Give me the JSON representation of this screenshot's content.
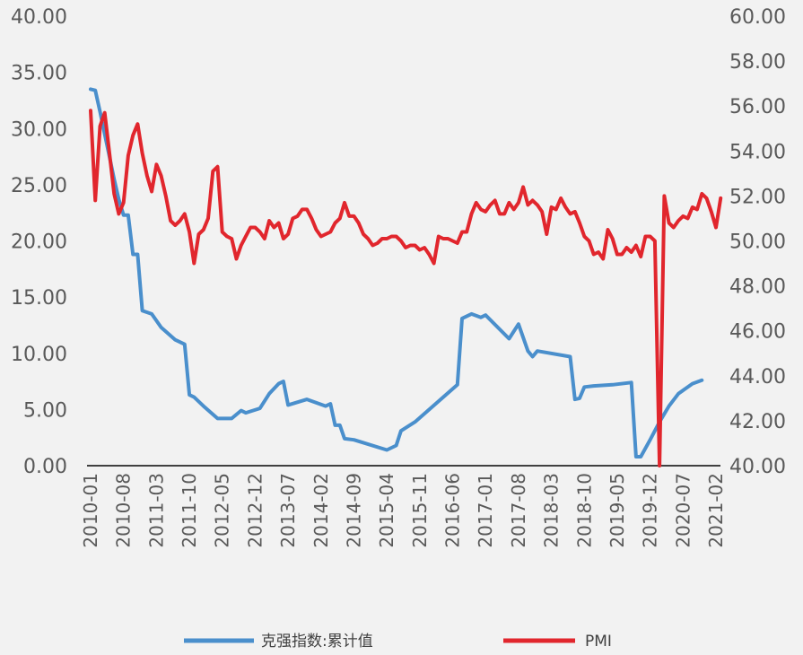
{
  "chart_data": {
    "type": "line",
    "x_tick_labels": [
      "2010-01",
      "2010-08",
      "2011-03",
      "2011-10",
      "2012-05",
      "2012-12",
      "2013-07",
      "2014-02",
      "2014-09",
      "2015-04",
      "2015-11",
      "2016-06",
      "2017-01",
      "2017-08",
      "2018-03",
      "2018-10",
      "2019-05",
      "2019-12",
      "2020-07",
      "2021-02"
    ],
    "y_left": {
      "ylim": [
        0,
        40
      ],
      "tick_labels": [
        "0.00",
        "5.00",
        "10.00",
        "15.00",
        "20.00",
        "25.00",
        "30.00",
        "35.00",
        "40.00"
      ]
    },
    "y_right": {
      "ylim": [
        40,
        60
      ],
      "tick_labels": [
        "40.00",
        "42.00",
        "44.00",
        "46.00",
        "48.00",
        "50.00",
        "52.00",
        "54.00",
        "56.00",
        "58.00",
        "60.00"
      ]
    },
    "series": [
      {
        "name": "克强指数:累计值",
        "axis": "left",
        "color": "#4a8fcc",
        "points": [
          [
            "2010-01",
            33.5
          ],
          [
            "2010-02",
            33.4
          ],
          [
            "2010-03",
            31.5
          ],
          [
            "2010-04",
            29.5
          ],
          [
            "2010-05",
            27.5
          ],
          [
            "2010-06",
            25.5
          ],
          [
            "2010-07",
            23.7
          ],
          [
            "2010-08",
            22.3
          ],
          [
            "2010-09",
            22.3
          ],
          [
            "2010-10",
            18.8
          ],
          [
            "2010-11",
            18.8
          ],
          [
            "2010-12",
            13.8
          ],
          [
            "2011-02",
            13.5
          ],
          [
            "2011-04",
            12.3
          ],
          [
            "2011-07",
            11.2
          ],
          [
            "2011-09",
            10.8
          ],
          [
            "2011-10",
            6.3
          ],
          [
            "2011-11",
            6.1
          ],
          [
            "2012-01",
            5.3
          ],
          [
            "2012-04",
            4.2
          ],
          [
            "2012-07",
            4.2
          ],
          [
            "2012-09",
            4.9
          ],
          [
            "2012-10",
            4.7
          ],
          [
            "2013-01",
            5.1
          ],
          [
            "2013-03",
            6.4
          ],
          [
            "2013-05",
            7.3
          ],
          [
            "2013-06",
            7.5
          ],
          [
            "2013-07",
            5.4
          ],
          [
            "2013-11",
            5.9
          ],
          [
            "2014-03",
            5.3
          ],
          [
            "2014-04",
            5.5
          ],
          [
            "2014-05",
            3.6
          ],
          [
            "2014-06",
            3.6
          ],
          [
            "2014-07",
            2.4
          ],
          [
            "2014-09",
            2.3
          ],
          [
            "2015-04",
            1.4
          ],
          [
            "2015-06",
            1.8
          ],
          [
            "2015-07",
            3.1
          ],
          [
            "2015-10",
            3.9
          ],
          [
            "2016-07",
            7.2
          ],
          [
            "2016-08",
            13.1
          ],
          [
            "2016-10",
            13.5
          ],
          [
            "2016-12",
            13.2
          ],
          [
            "2017-01",
            13.4
          ],
          [
            "2017-06",
            11.3
          ],
          [
            "2017-08",
            12.6
          ],
          [
            "2017-10",
            10.2
          ],
          [
            "2017-11",
            9.7
          ],
          [
            "2017-12",
            10.2
          ],
          [
            "2018-07",
            9.7
          ],
          [
            "2018-08",
            5.9
          ],
          [
            "2018-09",
            6.0
          ],
          [
            "2018-10",
            7.0
          ],
          [
            "2018-12",
            7.1
          ],
          [
            "2019-04",
            7.2
          ],
          [
            "2019-08",
            7.4
          ],
          [
            "2019-09",
            0.8
          ],
          [
            "2019-10",
            0.8
          ],
          [
            "2019-12",
            2.3
          ],
          [
            "2020-02",
            3.9
          ],
          [
            "2020-04",
            5.3
          ],
          [
            "2020-06",
            6.4
          ],
          [
            "2020-09",
            7.3
          ],
          [
            "2020-11",
            7.6
          ]
        ]
      },
      {
        "name": "PMI",
        "axis": "right",
        "color": "#e1262d",
        "points": [
          [
            "2010-01",
            55.8
          ],
          [
            "2010-02",
            51.8
          ],
          [
            "2010-03",
            55.1
          ],
          [
            "2010-04",
            55.7
          ],
          [
            "2010-05",
            53.9
          ],
          [
            "2010-06",
            52.1
          ],
          [
            "2010-07",
            51.2
          ],
          [
            "2010-08",
            51.7
          ],
          [
            "2010-09",
            53.8
          ],
          [
            "2010-10",
            54.7
          ],
          [
            "2010-11",
            55.2
          ],
          [
            "2010-12",
            53.9
          ],
          [
            "2011-01",
            52.9
          ],
          [
            "2011-02",
            52.2
          ],
          [
            "2011-03",
            53.4
          ],
          [
            "2011-04",
            52.9
          ],
          [
            "2011-05",
            52.0
          ],
          [
            "2011-06",
            50.9
          ],
          [
            "2011-07",
            50.7
          ],
          [
            "2011-08",
            50.9
          ],
          [
            "2011-09",
            51.2
          ],
          [
            "2011-10",
            50.4
          ],
          [
            "2011-11",
            49.0
          ],
          [
            "2011-12",
            50.3
          ],
          [
            "2012-01",
            50.5
          ],
          [
            "2012-02",
            51.0
          ],
          [
            "2012-03",
            53.1
          ],
          [
            "2012-04",
            53.3
          ],
          [
            "2012-05",
            50.4
          ],
          [
            "2012-06",
            50.2
          ],
          [
            "2012-07",
            50.1
          ],
          [
            "2012-08",
            49.2
          ],
          [
            "2012-09",
            49.8
          ],
          [
            "2012-10",
            50.2
          ],
          [
            "2012-11",
            50.6
          ],
          [
            "2012-12",
            50.6
          ],
          [
            "2013-01",
            50.4
          ],
          [
            "2013-02",
            50.1
          ],
          [
            "2013-03",
            50.9
          ],
          [
            "2013-04",
            50.6
          ],
          [
            "2013-05",
            50.8
          ],
          [
            "2013-06",
            50.1
          ],
          [
            "2013-07",
            50.3
          ],
          [
            "2013-08",
            51.0
          ],
          [
            "2013-09",
            51.1
          ],
          [
            "2013-10",
            51.4
          ],
          [
            "2013-11",
            51.4
          ],
          [
            "2013-12",
            51.0
          ],
          [
            "2014-01",
            50.5
          ],
          [
            "2014-02",
            50.2
          ],
          [
            "2014-03",
            50.3
          ],
          [
            "2014-04",
            50.4
          ],
          [
            "2014-05",
            50.8
          ],
          [
            "2014-06",
            51.0
          ],
          [
            "2014-07",
            51.7
          ],
          [
            "2014-08",
            51.1
          ],
          [
            "2014-09",
            51.1
          ],
          [
            "2014-10",
            50.8
          ],
          [
            "2014-11",
            50.3
          ],
          [
            "2014-12",
            50.1
          ],
          [
            "2015-01",
            49.8
          ],
          [
            "2015-02",
            49.9
          ],
          [
            "2015-03",
            50.1
          ],
          [
            "2015-04",
            50.1
          ],
          [
            "2015-05",
            50.2
          ],
          [
            "2015-06",
            50.2
          ],
          [
            "2015-07",
            50.0
          ],
          [
            "2015-08",
            49.7
          ],
          [
            "2015-09",
            49.8
          ],
          [
            "2015-10",
            49.8
          ],
          [
            "2015-11",
            49.6
          ],
          [
            "2015-12",
            49.7
          ],
          [
            "2016-01",
            49.4
          ],
          [
            "2016-02",
            49.0
          ],
          [
            "2016-03",
            50.2
          ],
          [
            "2016-04",
            50.1
          ],
          [
            "2016-05",
            50.1
          ],
          [
            "2016-06",
            50.0
          ],
          [
            "2016-07",
            49.9
          ],
          [
            "2016-08",
            50.4
          ],
          [
            "2016-09",
            50.4
          ],
          [
            "2016-10",
            51.2
          ],
          [
            "2016-11",
            51.7
          ],
          [
            "2016-12",
            51.4
          ],
          [
            "2017-01",
            51.3
          ],
          [
            "2017-02",
            51.6
          ],
          [
            "2017-03",
            51.8
          ],
          [
            "2017-04",
            51.2
          ],
          [
            "2017-05",
            51.2
          ],
          [
            "2017-06",
            51.7
          ],
          [
            "2017-07",
            51.4
          ],
          [
            "2017-08",
            51.7
          ],
          [
            "2017-09",
            52.4
          ],
          [
            "2017-10",
            51.6
          ],
          [
            "2017-11",
            51.8
          ],
          [
            "2017-12",
            51.6
          ],
          [
            "2018-01",
            51.3
          ],
          [
            "2018-02",
            50.3
          ],
          [
            "2018-03",
            51.5
          ],
          [
            "2018-04",
            51.4
          ],
          [
            "2018-05",
            51.9
          ],
          [
            "2018-06",
            51.5
          ],
          [
            "2018-07",
            51.2
          ],
          [
            "2018-08",
            51.3
          ],
          [
            "2018-09",
            50.8
          ],
          [
            "2018-10",
            50.2
          ],
          [
            "2018-11",
            50.0
          ],
          [
            "2018-12",
            49.4
          ],
          [
            "2019-01",
            49.5
          ],
          [
            "2019-02",
            49.2
          ],
          [
            "2019-03",
            50.5
          ],
          [
            "2019-04",
            50.1
          ],
          [
            "2019-05",
            49.4
          ],
          [
            "2019-06",
            49.4
          ],
          [
            "2019-07",
            49.7
          ],
          [
            "2019-08",
            49.5
          ],
          [
            "2019-09",
            49.8
          ],
          [
            "2019-10",
            49.3
          ],
          [
            "2019-11",
            50.2
          ],
          [
            "2019-12",
            50.2
          ],
          [
            "2020-01",
            50.0
          ],
          [
            "2020-02",
            35.7
          ],
          [
            "2020-03",
            52.0
          ],
          [
            "2020-04",
            50.8
          ],
          [
            "2020-05",
            50.6
          ],
          [
            "2020-06",
            50.9
          ],
          [
            "2020-07",
            51.1
          ],
          [
            "2020-08",
            51.0
          ],
          [
            "2020-09",
            51.5
          ],
          [
            "2020-10",
            51.4
          ],
          [
            "2020-11",
            52.1
          ],
          [
            "2020-12",
            51.9
          ],
          [
            "2021-01",
            51.3
          ],
          [
            "2021-02",
            50.6
          ],
          [
            "2021-03",
            51.9
          ]
        ]
      }
    ],
    "grid": false,
    "legend_position": "bottom"
  }
}
